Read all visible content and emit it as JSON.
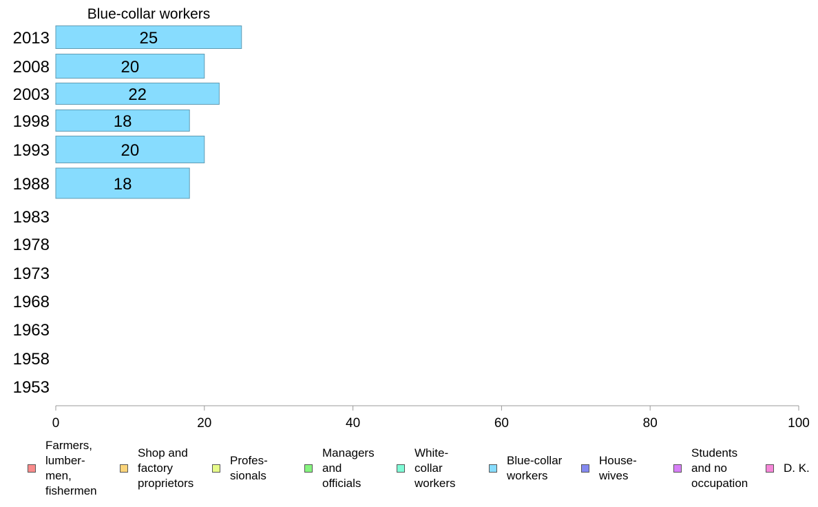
{
  "chart_data": {
    "type": "bar",
    "orientation": "horizontal",
    "title": "Blue-collar workers",
    "categories": [
      "2013",
      "2008",
      "2003",
      "1998",
      "1993",
      "1988",
      "1983",
      "1978",
      "1973",
      "1968",
      "1963",
      "1958",
      "1953"
    ],
    "series": [
      {
        "name": "Blue-collar workers",
        "values": [
          25,
          20,
          22,
          18,
          20,
          18,
          null,
          null,
          null,
          null,
          null,
          null,
          null
        ]
      }
    ],
    "data_labels": [
      "25",
      "20",
      "22",
      "18",
      "20",
      "18"
    ],
    "xlim": [
      0,
      100
    ],
    "xticks": [
      "0",
      "20",
      "40",
      "60",
      "80",
      "100"
    ],
    "grid": false,
    "legend_position": "bottom",
    "bar_color": "#87dcfe",
    "bar_border_color": "#5f9bb3",
    "axis_color": "#999999"
  },
  "legend": {
    "items": [
      {
        "label": "Farmers,\nlumber-\nmen,\nfishermen",
        "color": "#f98b8b"
      },
      {
        "label": "Shop and\nfactory\nproprietors",
        "color": "#fbd47a"
      },
      {
        "label": "Profes-\nsionals",
        "color": "#e7fb8a"
      },
      {
        "label": "Managers\nand\nofficials",
        "color": "#86f47f"
      },
      {
        "label": "White-\ncollar\nworkers",
        "color": "#7ffbd6"
      },
      {
        "label": "Blue-collar\nworkers",
        "color": "#87dcfe"
      },
      {
        "label": "House-\nwives",
        "color": "#8489f0"
      },
      {
        "label": "Students\nand no\noccupation",
        "color": "#d77ff7"
      },
      {
        "label": "D. K.",
        "color": "#f587d8"
      }
    ]
  }
}
